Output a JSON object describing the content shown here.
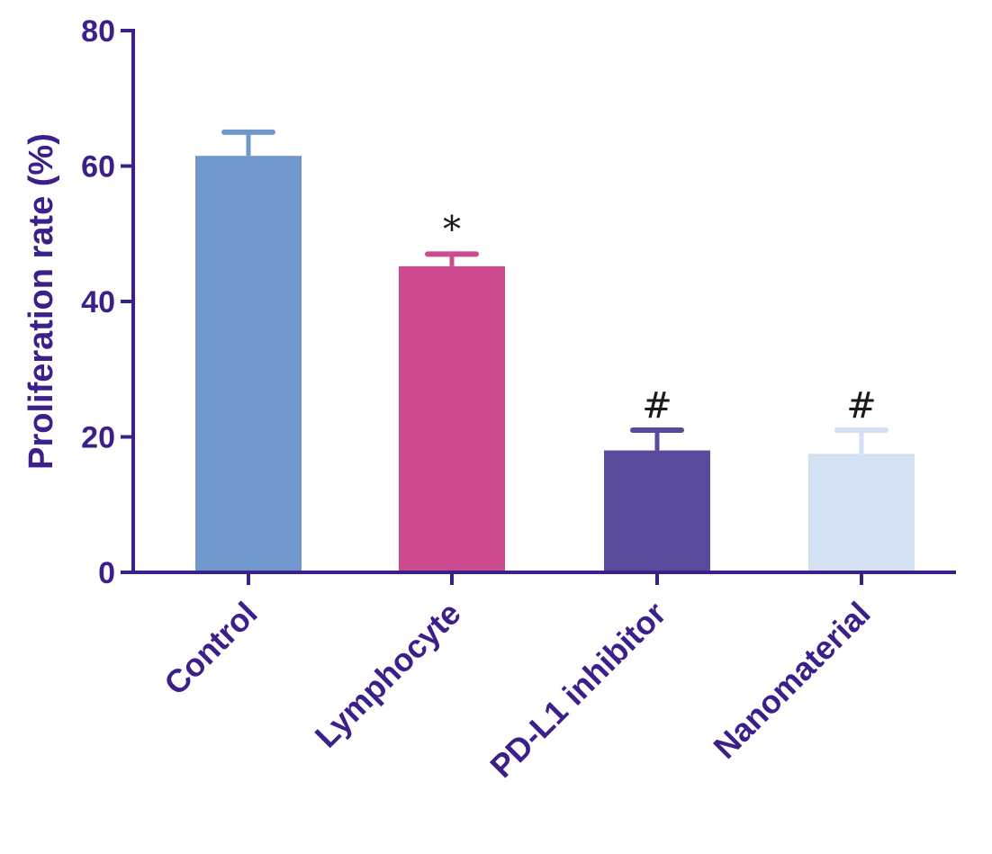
{
  "chart_data": {
    "type": "bar",
    "title": "",
    "xlabel": "",
    "ylabel": "Proliferation rate (%)",
    "ylim": [
      0,
      80
    ],
    "yticks": [
      0,
      20,
      40,
      60,
      80
    ],
    "categories": [
      "Control",
      "Lymphocyte",
      "PD-L1 inhibitor",
      "Nanomaterial"
    ],
    "values": [
      61.5,
      45.2,
      18.0,
      17.5
    ],
    "errors": [
      3.5,
      1.8,
      3.0,
      3.5
    ],
    "annotations": [
      "",
      "*",
      "#",
      "#"
    ],
    "colors": [
      "#7098cc",
      "#cc4a8e",
      "#5b4a9b",
      "#d3e1f3"
    ],
    "axis_color": "#3d1f8a"
  }
}
